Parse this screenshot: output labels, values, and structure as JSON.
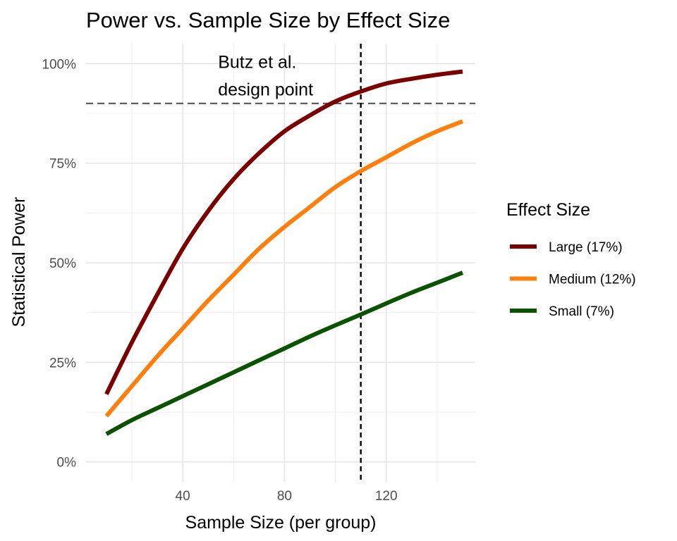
{
  "chart_data": {
    "type": "line",
    "title": "Power vs. Sample Size by Effect Size",
    "xlabel": "Sample Size (per group)",
    "ylabel": "Statistical Power",
    "xlim": [
      2,
      155
    ],
    "ylim": [
      -0.05,
      1.05
    ],
    "x_ticks": [
      40,
      80,
      120
    ],
    "x_tick_labels": [
      "40",
      "80",
      "120"
    ],
    "x_minor_ticks": [
      20,
      60,
      100,
      140
    ],
    "y_ticks": [
      0,
      0.25,
      0.5,
      0.75,
      1.0
    ],
    "y_tick_labels": [
      "0%",
      "25%",
      "50%",
      "75%",
      "100%"
    ],
    "y_minor_ticks": [
      0.125,
      0.375,
      0.625,
      0.875
    ],
    "grid": true,
    "legend": {
      "title": "Effect Size",
      "position": "right"
    },
    "series": [
      {
        "name": "Large (17%)",
        "color": "#7a0000",
        "x": [
          10,
          20,
          30,
          40,
          50,
          60,
          70,
          80,
          90,
          100,
          110,
          120,
          130,
          140,
          150
        ],
        "y": [
          0.17,
          0.3,
          0.42,
          0.535,
          0.63,
          0.71,
          0.775,
          0.83,
          0.87,
          0.905,
          0.93,
          0.95,
          0.962,
          0.972,
          0.98
        ]
      },
      {
        "name": "Medium (12%)",
        "color": "#ff7f0e",
        "x": [
          10,
          20,
          30,
          40,
          50,
          60,
          70,
          80,
          90,
          100,
          110,
          120,
          130,
          140,
          150
        ],
        "y": [
          0.115,
          0.19,
          0.265,
          0.335,
          0.405,
          0.47,
          0.535,
          0.59,
          0.64,
          0.69,
          0.73,
          0.765,
          0.8,
          0.83,
          0.855
        ]
      },
      {
        "name": "Small (7%)",
        "color": "#0a5200",
        "x": [
          10,
          20,
          30,
          40,
          50,
          60,
          70,
          80,
          90,
          100,
          110,
          120,
          130,
          140,
          150
        ],
        "y": [
          0.07,
          0.105,
          0.135,
          0.165,
          0.195,
          0.225,
          0.255,
          0.285,
          0.315,
          0.343,
          0.37,
          0.398,
          0.425,
          0.45,
          0.475
        ]
      }
    ],
    "reference_lines": {
      "horizontal": {
        "y": 0.9,
        "style": "dashed",
        "color": "#555555"
      },
      "vertical": {
        "x": 110,
        "style": "dashed",
        "color": "#000000"
      }
    },
    "annotation": {
      "lines": [
        "Butz et al.",
        "design point"
      ],
      "x": 55,
      "y": 1.0
    }
  }
}
